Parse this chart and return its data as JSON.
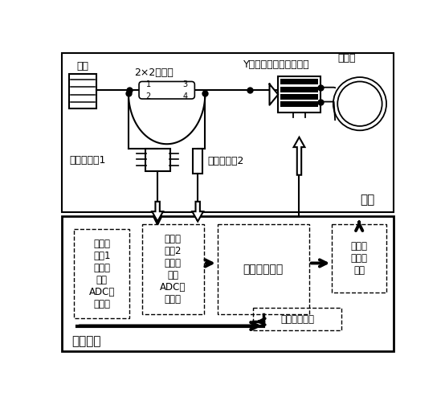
{
  "top_label": "光路",
  "bottom_label": "检测电路",
  "source_label": "光源",
  "coupler_label": "2×2耦合器",
  "waveguide_label": "Y波导（或相位调制器）",
  "fiber_label": "光纤环",
  "pd1_label": "光电探测器1",
  "pd2_label": "光电探测器2",
  "box1_text": "光电探\n测器1\n信号放\n大和\nADC采\n样电路",
  "box2_text": "光电探\n测器2\n信号放\n大和\nADC采\n样电路",
  "box3_text": "数字逻辑芯片",
  "box4_text": "波导相\n位调制\n电路",
  "box5_text": "数据接口电路",
  "port1": "1",
  "port2": "2",
  "port3": "3",
  "port4": "4"
}
